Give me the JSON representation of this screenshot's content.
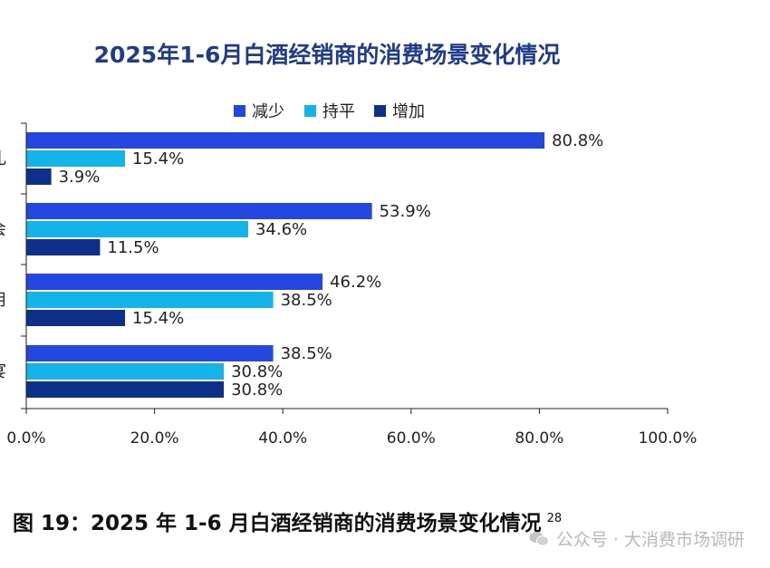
{
  "chart_data": {
    "type": "bar",
    "orientation": "horizontal",
    "title": "2025年1-6月白酒经销商的消费场景变化情况",
    "categories": [
      "礼",
      "会",
      "用",
      "宴"
    ],
    "series": [
      {
        "name": "减少",
        "color": "#2447e0",
        "values": [
          80.8,
          53.9,
          46.2,
          38.5
        ],
        "labels": [
          "80.8%",
          "53.9%",
          "46.2%",
          "38.5%"
        ]
      },
      {
        "name": "持平",
        "color": "#14b4ea",
        "values": [
          15.4,
          34.6,
          38.5,
          30.8
        ],
        "labels": [
          "15.4%",
          "34.6%",
          "38.5%",
          "30.8%"
        ]
      },
      {
        "name": "增加",
        "color": "#0e2f8a",
        "values": [
          3.9,
          11.5,
          15.4,
          30.8
        ],
        "labels": [
          "3.9%",
          "11.5%",
          "15.4%",
          "30.8%"
        ]
      }
    ],
    "xlim": [
      0,
      100
    ],
    "xticks": [
      {
        "value": 0,
        "label": "0.0%"
      },
      {
        "value": 20,
        "label": "20.0%"
      },
      {
        "value": 40,
        "label": "40.0%"
      },
      {
        "value": 60,
        "label": "60.0%"
      },
      {
        "value": 80,
        "label": "80.0%"
      },
      {
        "value": 100,
        "label": "100.0%"
      }
    ],
    "legend_position": "top",
    "grid": false
  },
  "caption": {
    "text": "图 19：2025 年 1-6 月白酒经销商的消费场景变化情况",
    "page_number": "28"
  },
  "watermark": {
    "text": "公众号 · 大消费市场调研",
    "icon": "wechat-icon"
  }
}
